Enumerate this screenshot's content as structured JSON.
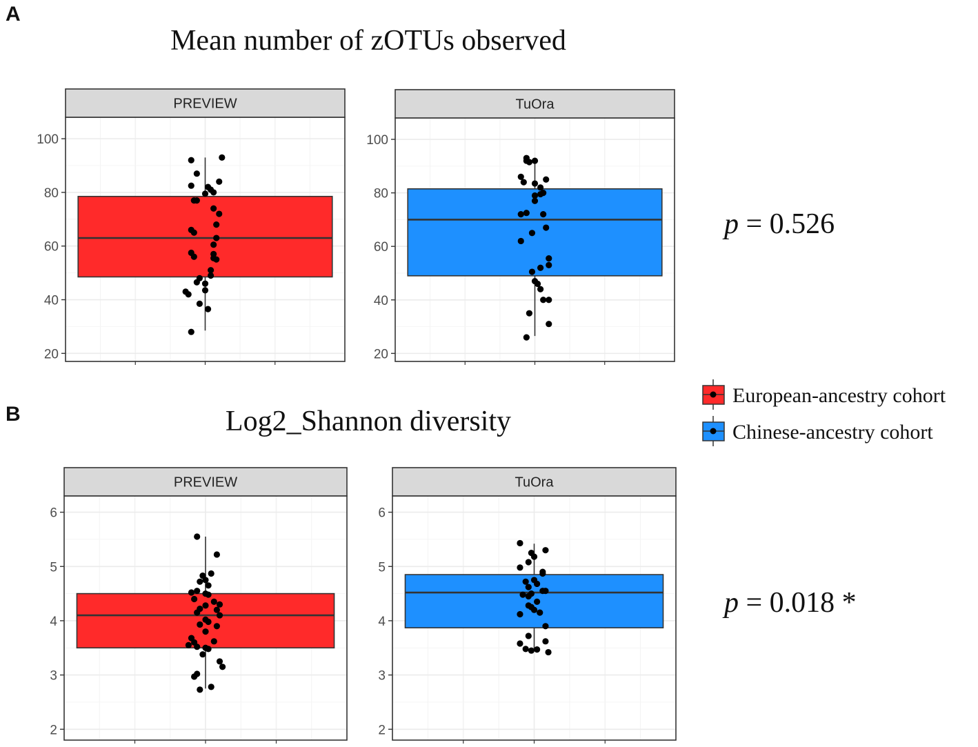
{
  "panels": [
    {
      "letter": "A",
      "title": "Mean number of zOTUs observed",
      "p_label": "p",
      "p_text": " = 0.526"
    },
    {
      "letter": "B",
      "title": "Log2_Shannon diversity",
      "p_label": "p",
      "p_text": " = 0.018 *"
    }
  ],
  "legend": {
    "items": [
      {
        "label": "European-ancestry cohort",
        "color": "#FF2A2A"
      },
      {
        "label": "Chinese-ancestry cohort",
        "color": "#1E90FF"
      }
    ]
  },
  "chart_data": [
    {
      "type": "box",
      "title": "Mean number of zOTUs observed",
      "ylim": [
        17,
        108
      ],
      "yticks": [
        20,
        40,
        60,
        80,
        100
      ],
      "ytick_labels": [
        "20",
        "40",
        "60",
        "80",
        "100"
      ],
      "facets": [
        {
          "label": "PREVIEW",
          "group": "European-ancestry cohort",
          "color": "#FF2A2A",
          "q1": 48.5,
          "median": 63,
          "q3": 78.5,
          "whisker_low": 28.5,
          "whisker_high": 93,
          "points": [
            [
              -0.05,
              92
            ],
            [
              0.06,
              93
            ],
            [
              -0.03,
              87
            ],
            [
              0.05,
              84
            ],
            [
              -0.05,
              82.5
            ],
            [
              0.01,
              82
            ],
            [
              0.02,
              81
            ],
            [
              0.03,
              80
            ],
            [
              0.0,
              79.5
            ],
            [
              -0.04,
              77
            ],
            [
              -0.03,
              77
            ],
            [
              0.03,
              74
            ],
            [
              0.05,
              72
            ],
            [
              -0.05,
              66
            ],
            [
              -0.04,
              65
            ],
            [
              0.04,
              68
            ],
            [
              0.04,
              63
            ],
            [
              0.03,
              60.5
            ],
            [
              -0.05,
              57.5
            ],
            [
              -0.04,
              56
            ],
            [
              0.03,
              57
            ],
            [
              0.03,
              55.5
            ],
            [
              0.04,
              55
            ],
            [
              0.02,
              51
            ],
            [
              0.02,
              49
            ],
            [
              -0.02,
              48
            ],
            [
              -0.03,
              46.5
            ],
            [
              0.0,
              46
            ],
            [
              -0.07,
              43
            ],
            [
              -0.06,
              42
            ],
            [
              0.0,
              43.5
            ],
            [
              -0.02,
              38.5
            ],
            [
              0.01,
              36.5
            ],
            [
              -0.05,
              28
            ]
          ]
        },
        {
          "label": "TuOra",
          "group": "Chinese-ancestry cohort",
          "color": "#1E90FF",
          "q1": 49,
          "median": 70,
          "q3": 81.5,
          "whisker_low": 26.5,
          "whisker_high": 92.5,
          "points": [
            [
              -0.03,
              93
            ],
            [
              -0.03,
              92
            ],
            [
              -0.02,
              91.5
            ],
            [
              0.0,
              92
            ],
            [
              -0.05,
              86
            ],
            [
              0.04,
              85
            ],
            [
              -0.04,
              84
            ],
            [
              0.0,
              83.5
            ],
            [
              0.02,
              82
            ],
            [
              0.03,
              80
            ],
            [
              0.02,
              79.5
            ],
            [
              0.0,
              79
            ],
            [
              0.0,
              77
            ],
            [
              0.03,
              72
            ],
            [
              -0.05,
              72
            ],
            [
              -0.03,
              72.5
            ],
            [
              0.04,
              67
            ],
            [
              -0.01,
              65
            ],
            [
              -0.05,
              62
            ],
            [
              0.05,
              55.5
            ],
            [
              0.05,
              53
            ],
            [
              0.02,
              52
            ],
            [
              -0.01,
              50.5
            ],
            [
              0.0,
              47
            ],
            [
              0.01,
              46
            ],
            [
              0.02,
              44
            ],
            [
              0.03,
              40
            ],
            [
              0.05,
              40
            ],
            [
              -0.02,
              35
            ],
            [
              0.05,
              31
            ],
            [
              -0.03,
              26
            ]
          ]
        }
      ]
    },
    {
      "type": "box",
      "title": "Log2_Shannon diversity",
      "ylim": [
        1.8,
        6.3
      ],
      "yticks": [
        2,
        3,
        4,
        5,
        6
      ],
      "ytick_labels": [
        "2",
        "3",
        "4",
        "5",
        "6"
      ],
      "facets": [
        {
          "label": "PREVIEW",
          "group": "European-ancestry cohort",
          "color": "#FF2A2A",
          "q1": 3.5,
          "median": 4.1,
          "q3": 4.5,
          "whisker_low": 2.75,
          "whisker_high": 5.55,
          "points": [
            [
              -0.03,
              5.55
            ],
            [
              0.04,
              5.22
            ],
            [
              0.02,
              4.87
            ],
            [
              -0.01,
              4.83
            ],
            [
              0.0,
              4.75
            ],
            [
              -0.02,
              4.72
            ],
            [
              0.01,
              4.65
            ],
            [
              -0.03,
              4.55
            ],
            [
              -0.05,
              4.52
            ],
            [
              0.0,
              4.5
            ],
            [
              0.01,
              4.48
            ],
            [
              -0.04,
              4.4
            ],
            [
              0.03,
              4.35
            ],
            [
              0.05,
              4.3
            ],
            [
              0.0,
              4.28
            ],
            [
              -0.02,
              4.22
            ],
            [
              0.04,
              4.2
            ],
            [
              -0.03,
              4.15
            ],
            [
              0.05,
              4.1
            ],
            [
              0.0,
              4.02
            ],
            [
              0.01,
              3.98
            ],
            [
              -0.02,
              3.93
            ],
            [
              0.04,
              3.9
            ],
            [
              0.0,
              3.8
            ],
            [
              -0.05,
              3.68
            ],
            [
              0.03,
              3.62
            ],
            [
              -0.04,
              3.6
            ],
            [
              -0.06,
              3.55
            ],
            [
              -0.03,
              3.52
            ],
            [
              0.0,
              3.5
            ],
            [
              0.01,
              3.48
            ],
            [
              -0.01,
              3.38
            ],
            [
              0.05,
              3.25
            ],
            [
              0.06,
              3.15
            ],
            [
              -0.03,
              3.02
            ],
            [
              -0.04,
              2.97
            ],
            [
              0.02,
              2.78
            ],
            [
              -0.02,
              2.73
            ]
          ]
        },
        {
          "label": "TuOra",
          "group": "Chinese-ancestry cohort",
          "color": "#1E90FF",
          "q1": 3.87,
          "median": 4.52,
          "q3": 4.85,
          "whisker_low": 3.45,
          "whisker_high": 5.42,
          "points": [
            [
              -0.05,
              5.43
            ],
            [
              0.04,
              5.3
            ],
            [
              -0.01,
              5.25
            ],
            [
              0.0,
              5.18
            ],
            [
              -0.02,
              5.08
            ],
            [
              -0.05,
              4.98
            ],
            [
              0.03,
              4.9
            ],
            [
              0.03,
              4.87
            ],
            [
              0.0,
              4.75
            ],
            [
              -0.03,
              4.72
            ],
            [
              0.01,
              4.68
            ],
            [
              -0.02,
              4.62
            ],
            [
              0.04,
              4.55
            ],
            [
              0.03,
              4.55
            ],
            [
              -0.01,
              4.5
            ],
            [
              -0.04,
              4.48
            ],
            [
              -0.02,
              4.45
            ],
            [
              0.01,
              4.35
            ],
            [
              -0.02,
              4.28
            ],
            [
              -0.01,
              4.25
            ],
            [
              0.0,
              4.2
            ],
            [
              0.02,
              4.15
            ],
            [
              -0.05,
              4.12
            ],
            [
              0.04,
              3.9
            ],
            [
              -0.02,
              3.72
            ],
            [
              0.04,
              3.62
            ],
            [
              -0.05,
              3.58
            ],
            [
              -0.03,
              3.48
            ],
            [
              -0.01,
              3.45
            ],
            [
              0.01,
              3.47
            ],
            [
              0.05,
              3.42
            ]
          ]
        }
      ]
    }
  ]
}
